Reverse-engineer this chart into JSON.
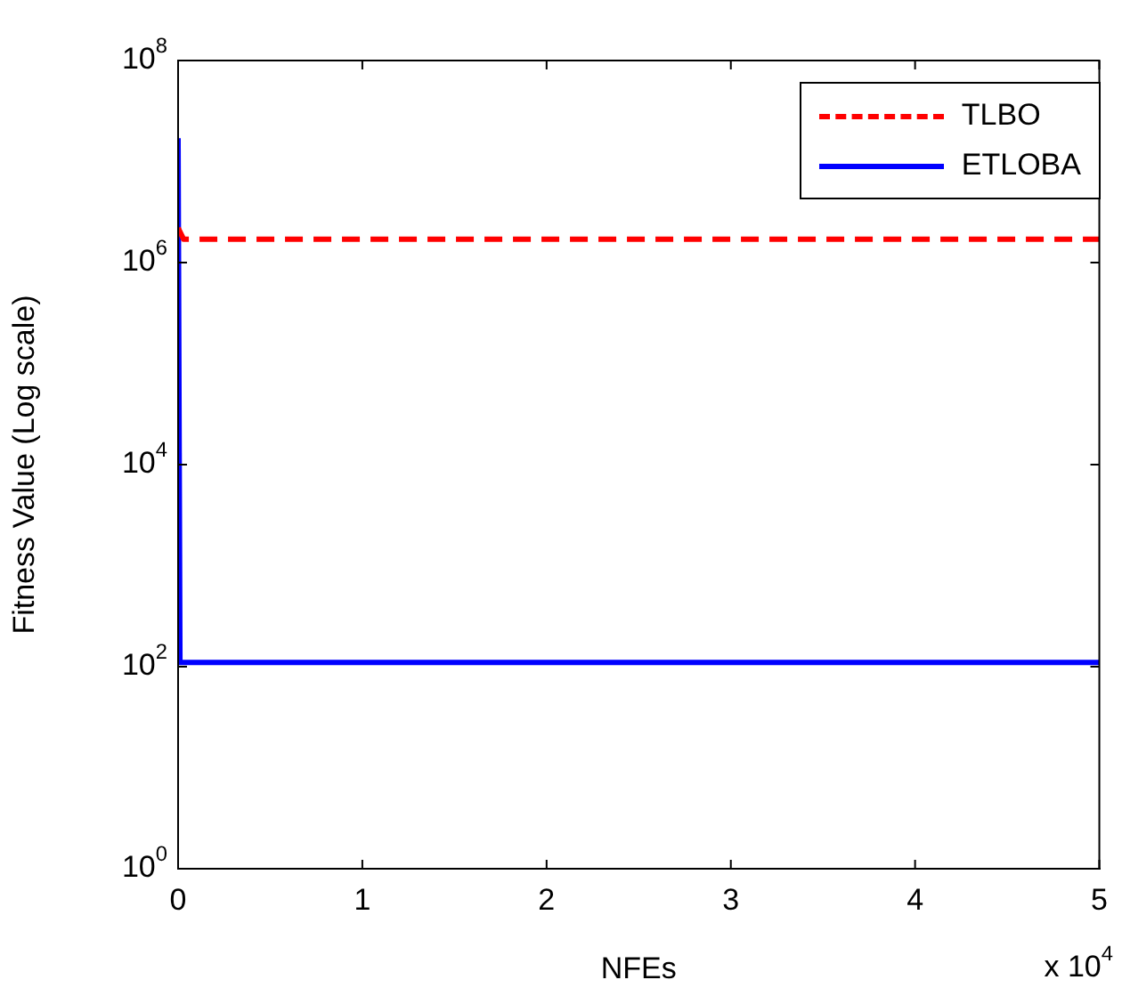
{
  "chart_data": {
    "type": "line",
    "xlabel": "NFEs",
    "ylabel": "Fitness Value (Log scale)",
    "log": "y",
    "grid": false,
    "legend": "top right",
    "xlim": [
      0,
      5
    ],
    "xticks": [
      0,
      1,
      2,
      3,
      4,
      5
    ],
    "ylim": [
      1,
      100000000
    ],
    "yticks": [
      {
        "value": 1,
        "label": "10$^{0}$"
      },
      {
        "value": 100,
        "label": "10$^{2}$"
      },
      {
        "value": 10000,
        "label": "10$^{4}$"
      },
      {
        "value": 1000000,
        "label": "10$^{6}$"
      },
      {
        "value": 100000000,
        "label": "10$^{8}$"
      }
    ],
    "annotations": [
      "x 10$^{4}$"
    ],
    "series": [
      {
        "name": "TLBO",
        "color": "#ff0000",
        "line_style": "dashed",
        "x": [
          0,
          0.03,
          0.1,
          5
        ],
        "values": [
          2200000,
          1700000,
          1700000,
          1700000
        ]
      },
      {
        "name": "ETLOBA",
        "color": "#0000ff",
        "line_style": "solid",
        "x": [
          0,
          0.01,
          5
        ],
        "values": [
          17000000,
          110,
          110
        ]
      }
    ]
  }
}
